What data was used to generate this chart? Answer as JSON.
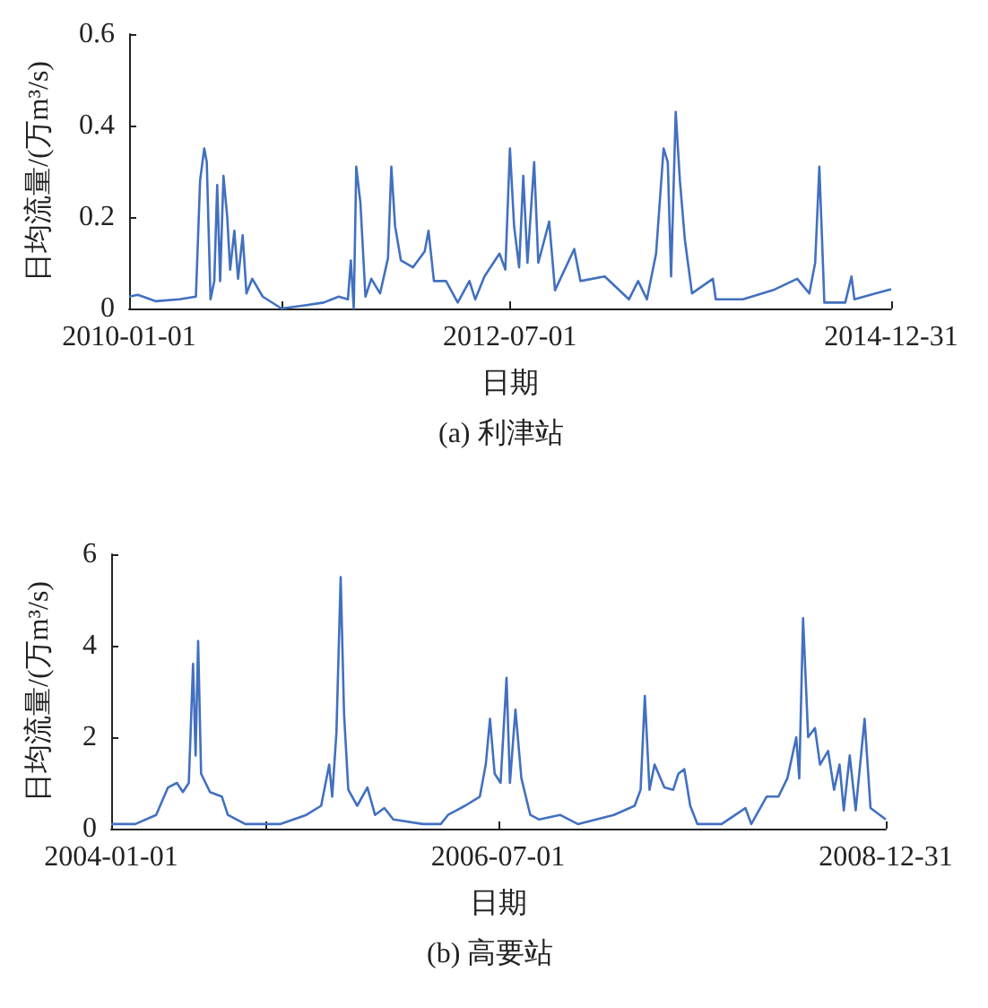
{
  "chart_data": [
    {
      "type": "line",
      "xlabel": "日期",
      "ylabel": "日均流量/(万m³/s)",
      "annotations": [
        "(a) 利津站"
      ],
      "ylim": [
        0,
        0.6
      ],
      "yticks": [
        0,
        0.2,
        0.4,
        0.6
      ],
      "xlim": [
        "2010-01-01",
        "2014-12-31"
      ],
      "xticks": [
        {
          "value": "2010-01-01",
          "label": "2010-01-01"
        },
        {
          "value": "2011-01-01",
          "label": null
        },
        {
          "value": "2012-07-01",
          "label": "2012-07-01"
        },
        {
          "value": "2014-12-31",
          "label": "2014-12-31"
        }
      ],
      "grid": false,
      "marker": "none",
      "line_style": "solid",
      "series": [
        {
          "color": "#4270c0",
          "x": [
            "2010-01-01",
            "2010-01-22",
            "2010-03-05",
            "2010-05-01",
            "2010-06-10",
            "2010-06-20",
            "2010-06-30",
            "2010-07-06",
            "2010-07-15",
            "2010-07-24",
            "2010-07-31",
            "2010-08-07",
            "2010-08-15",
            "2010-08-24",
            "2010-08-31",
            "2010-09-10",
            "2010-09-19",
            "2010-09-30",
            "2010-10-09",
            "2010-10-23",
            "2010-11-17",
            "2011-01-01",
            "2011-02-26",
            "2011-04-12",
            "2011-05-18",
            "2011-06-09",
            "2011-06-16",
            "2011-06-23",
            "2011-06-29",
            "2011-07-09",
            "2011-07-21",
            "2011-08-04",
            "2011-08-25",
            "2011-09-13",
            "2011-09-21",
            "2011-09-30",
            "2011-10-14",
            "2011-11-12",
            "2011-12-10",
            "2011-12-19",
            "2012-01-01",
            "2012-01-30",
            "2012-02-27",
            "2012-03-26",
            "2012-04-09",
            "2012-05-01",
            "2012-06-06",
            "2012-06-20",
            "2012-07-01",
            "2012-07-11",
            "2012-07-23",
            "2012-08-02",
            "2012-08-12",
            "2012-08-28",
            "2012-09-07",
            "2012-10-03",
            "2012-10-17",
            "2012-12-02",
            "2012-12-17",
            "2013-02-13",
            "2013-04-12",
            "2013-05-04",
            "2013-05-25",
            "2013-06-16",
            "2013-07-04",
            "2013-07-14",
            "2013-07-22",
            "2013-08-02",
            "2013-08-12",
            "2013-08-24",
            "2013-09-10",
            "2013-10-30",
            "2013-11-06",
            "2014-01-10",
            "2014-03-23",
            "2014-05-20",
            "2014-06-18",
            "2014-07-02",
            "2014-07-12",
            "2014-07-24",
            "2014-09-12",
            "2014-09-27",
            "2014-10-04",
            "2014-11-23",
            "2014-12-31"
          ],
          "values": [
            0.026,
            0.03,
            0.016,
            0.02,
            0.026,
            0.28,
            0.35,
            0.32,
            0.02,
            0.06,
            0.27,
            0.06,
            0.29,
            0.2,
            0.085,
            0.17,
            0.065,
            0.16,
            0.033,
            0.065,
            0.026,
            0.0,
            0.007,
            0.013,
            0.026,
            0.02,
            0.105,
            0.0,
            0.31,
            0.23,
            0.026,
            0.065,
            0.033,
            0.11,
            0.31,
            0.18,
            0.105,
            0.09,
            0.125,
            0.17,
            0.06,
            0.06,
            0.013,
            0.06,
            0.02,
            0.07,
            0.12,
            0.085,
            0.35,
            0.18,
            0.09,
            0.29,
            0.1,
            0.32,
            0.1,
            0.19,
            0.04,
            0.13,
            0.06,
            0.07,
            0.02,
            0.06,
            0.02,
            0.12,
            0.35,
            0.32,
            0.07,
            0.43,
            0.28,
            0.15,
            0.033,
            0.065,
            0.02,
            0.02,
            0.04,
            0.065,
            0.033,
            0.1,
            0.31,
            0.013,
            0.013,
            0.07,
            0.02,
            0.033,
            0.042
          ]
        }
      ]
    },
    {
      "type": "line",
      "xlabel": "日期",
      "ylabel": "日均流量/(万m³/s)",
      "annotations": [
        "(b) 高要站"
      ],
      "ylim": [
        0,
        6
      ],
      "yticks": [
        0,
        2,
        4,
        6
      ],
      "xlim": [
        "2004-01-01",
        "2008-12-31"
      ],
      "xticks": [
        {
          "value": "2004-01-01",
          "label": "2004-01-01"
        },
        {
          "value": "2005-01-01",
          "label": null
        },
        {
          "value": "2006-07-01",
          "label": "2006-07-01"
        },
        {
          "value": "2008-12-31",
          "label": "2008-12-31"
        }
      ],
      "grid": false,
      "marker": "none",
      "line_style": "solid",
      "series": [
        {
          "color": "#4270c0",
          "x": [
            "2004-01-01",
            "2004-02-27",
            "2004-04-16",
            "2004-05-14",
            "2004-06-04",
            "2004-06-18",
            "2004-07-02",
            "2004-07-12",
            "2004-07-18",
            "2004-07-24",
            "2004-07-31",
            "2004-08-21",
            "2004-09-18",
            "2004-10-02",
            "2004-11-12",
            "2005-02-02",
            "2005-04-05",
            "2005-05-10",
            "2005-05-29",
            "2005-06-05",
            "2005-06-15",
            "2005-06-25",
            "2005-07-03",
            "2005-07-13",
            "2005-08-03",
            "2005-08-27",
            "2005-09-14",
            "2005-10-06",
            "2005-10-27",
            "2006-01-05",
            "2006-02-16",
            "2006-03-05",
            "2006-04-14",
            "2006-05-19",
            "2006-06-02",
            "2006-06-12",
            "2006-06-23",
            "2006-07-07",
            "2006-07-21",
            "2006-07-29",
            "2006-08-11",
            "2006-08-25",
            "2006-09-15",
            "2006-10-06",
            "2006-11-24",
            "2007-01-05",
            "2007-03-31",
            "2007-05-19",
            "2007-06-02",
            "2007-06-12",
            "2007-06-23",
            "2007-07-05",
            "2007-07-28",
            "2007-08-18",
            "2007-08-30",
            "2007-09-13",
            "2007-09-27",
            "2007-10-14",
            "2007-12-10",
            "2008-02-04",
            "2008-02-18",
            "2008-03-25",
            "2008-04-22",
            "2008-05-13",
            "2008-06-03",
            "2008-06-10",
            "2008-06-19",
            "2008-07-01",
            "2008-07-17",
            "2008-07-29",
            "2008-08-17",
            "2008-08-31",
            "2008-09-13",
            "2008-09-23",
            "2008-10-07",
            "2008-10-21",
            "2008-11-11",
            "2008-11-25",
            "2008-12-31"
          ],
          "values": [
            0.1,
            0.1,
            0.3,
            0.9,
            1.0,
            0.8,
            1.0,
            3.6,
            1.6,
            4.1,
            1.2,
            0.8,
            0.7,
            0.3,
            0.1,
            0.1,
            0.3,
            0.5,
            1.4,
            0.7,
            2.1,
            5.5,
            2.5,
            0.85,
            0.5,
            0.9,
            0.3,
            0.45,
            0.2,
            0.1,
            0.1,
            0.3,
            0.5,
            0.7,
            1.4,
            2.4,
            1.2,
            1.0,
            3.3,
            1.0,
            2.6,
            1.1,
            0.3,
            0.2,
            0.3,
            0.1,
            0.3,
            0.5,
            0.85,
            2.9,
            0.85,
            1.4,
            0.9,
            0.85,
            1.2,
            1.3,
            0.5,
            0.1,
            0.1,
            0.45,
            0.1,
            0.7,
            0.7,
            1.1,
            2.0,
            1.1,
            4.6,
            2.0,
            2.2,
            1.4,
            1.7,
            0.85,
            1.4,
            0.4,
            1.6,
            0.4,
            2.4,
            0.45,
            0.2
          ]
        }
      ]
    }
  ]
}
